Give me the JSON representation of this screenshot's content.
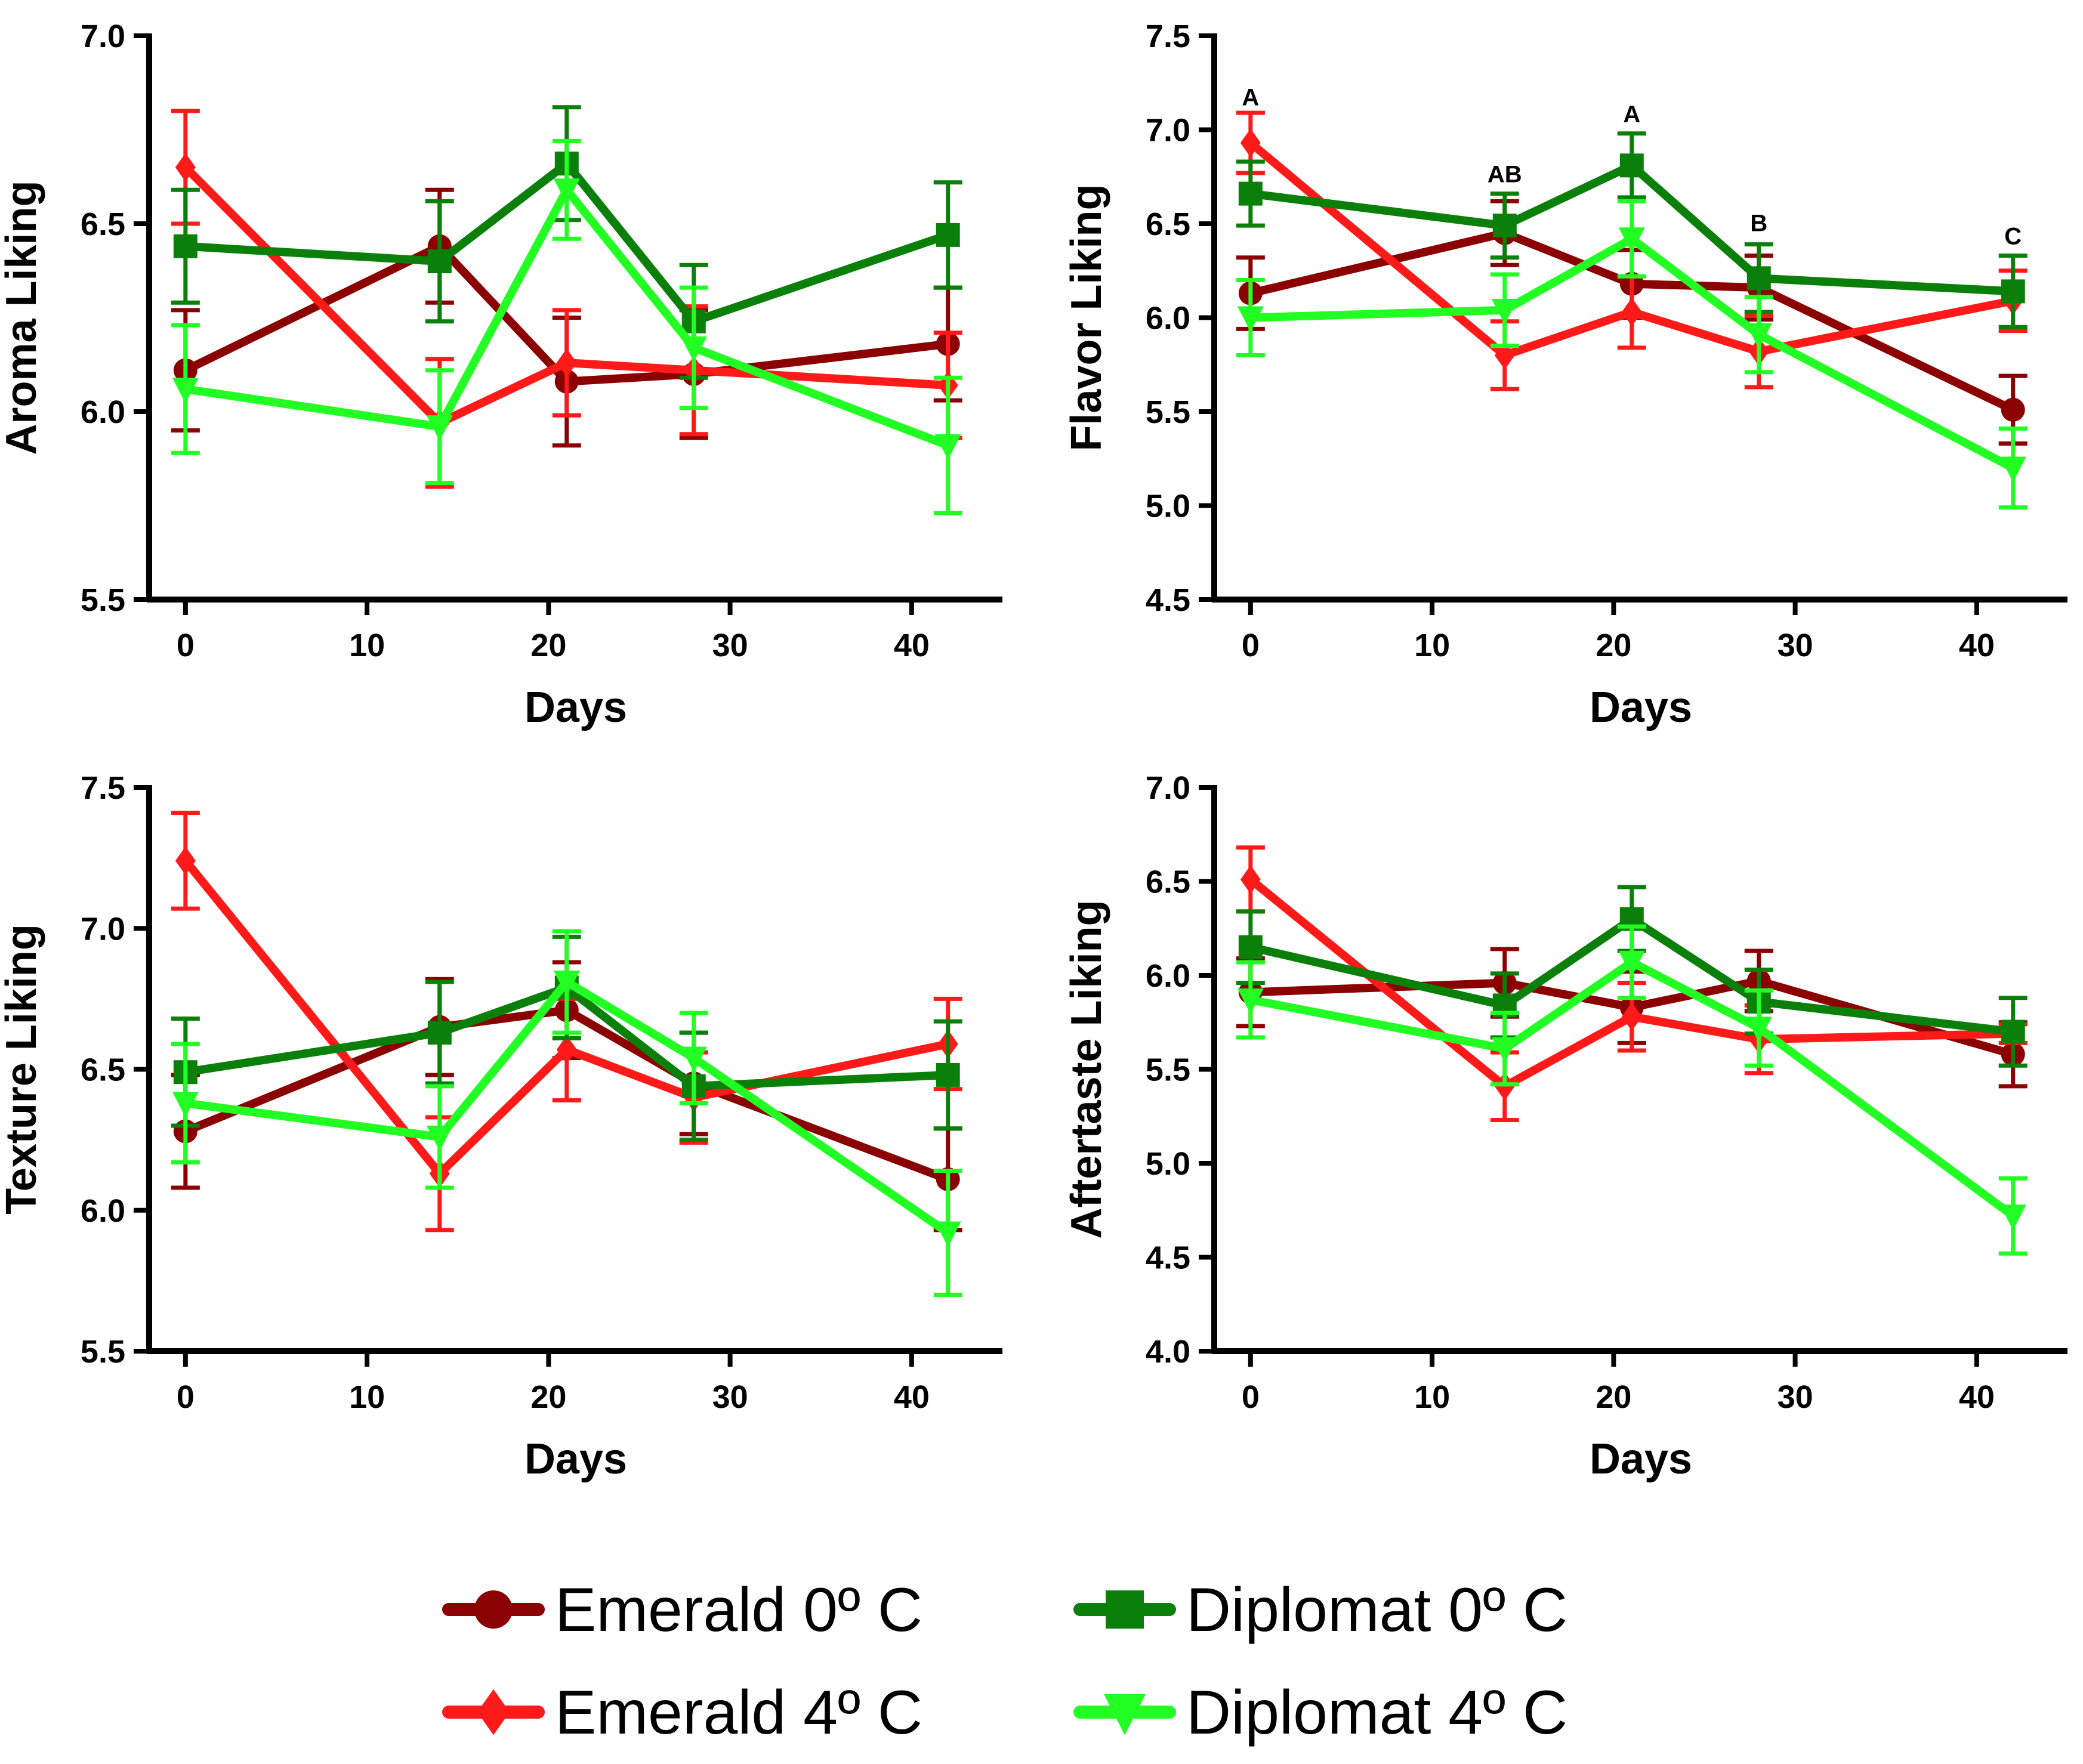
{
  "series_styles": [
    {
      "name": "Emerald 0º C",
      "color": "#8B0000",
      "marker": "circle"
    },
    {
      "name": "Emerald 4º C",
      "color": "#FF1A1A",
      "marker": "diamond"
    },
    {
      "name": "Diplomat 0º C",
      "color": "#0A7F0A",
      "marker": "square"
    },
    {
      "name": "Diplomat 4º C",
      "color": "#22FF22",
      "marker": "triangle-down"
    }
  ],
  "legend": {
    "items": [
      {
        "label": "Emerald 0º C",
        "series": 0
      },
      {
        "label": "Diplomat 0º C",
        "series": 2
      },
      {
        "label": "Emerald 4º C",
        "series": 1
      },
      {
        "label": "Diplomat 4º C",
        "series": 3
      }
    ]
  },
  "chart_data": [
    {
      "id": "aroma",
      "type": "line",
      "xlabel": "Days",
      "ylabel": "Aroma Liking",
      "x": [
        0,
        14,
        21,
        28,
        42
      ],
      "xlim": [
        -2,
        45
      ],
      "xticks": [
        0,
        10,
        20,
        30,
        40
      ],
      "ylim": [
        5.5,
        7.0
      ],
      "yticks": [
        "5.5",
        "6.0",
        "6.5",
        "7.0"
      ],
      "annotations": [],
      "series": [
        {
          "name": "Emerald 0º C",
          "values": [
            6.11,
            6.44,
            6.08,
            6.1,
            6.18
          ],
          "errors": [
            0.16,
            0.15,
            0.17,
            0.17,
            0.15
          ]
        },
        {
          "name": "Emerald 4º C",
          "values": [
            6.65,
            5.97,
            6.13,
            6.11,
            6.07
          ],
          "errors": [
            0.15,
            0.17,
            0.14,
            0.17,
            0.14
          ]
        },
        {
          "name": "Diplomat 0º C",
          "values": [
            6.44,
            6.4,
            6.66,
            6.24,
            6.47
          ],
          "errors": [
            0.15,
            0.16,
            0.15,
            0.15,
            0.14
          ]
        },
        {
          "name": "Diplomat 4º C",
          "values": [
            6.06,
            5.96,
            6.59,
            6.17,
            5.91
          ],
          "errors": [
            0.17,
            0.15,
            0.13,
            0.16,
            0.18
          ]
        }
      ]
    },
    {
      "id": "flavor",
      "type": "line",
      "xlabel": "Days",
      "ylabel": "Flavor Liking",
      "x": [
        0,
        14,
        21,
        28,
        42
      ],
      "xlim": [
        -2,
        45
      ],
      "xticks": [
        0,
        10,
        20,
        30,
        40
      ],
      "ylim": [
        4.5,
        7.5
      ],
      "yticks": [
        "4.5",
        "5.0",
        "5.5",
        "6.0",
        "6.5",
        "7.0",
        "7.5"
      ],
      "annotations": [
        {
          "x": 0,
          "y": 7.13,
          "text": "A"
        },
        {
          "x": 14,
          "y": 6.72,
          "text": "AB"
        },
        {
          "x": 21,
          "y": 7.04,
          "text": "A"
        },
        {
          "x": 28,
          "y": 6.46,
          "text": "B"
        },
        {
          "x": 42,
          "y": 6.39,
          "text": "C"
        }
      ],
      "series": [
        {
          "name": "Emerald 0º C",
          "values": [
            6.13,
            6.45,
            6.18,
            6.16,
            5.51
          ],
          "errors": [
            0.19,
            0.17,
            0.18,
            0.17,
            0.18
          ]
        },
        {
          "name": "Emerald 4º C",
          "values": [
            6.93,
            5.8,
            6.03,
            5.82,
            6.09
          ],
          "errors": [
            0.16,
            0.18,
            0.19,
            0.19,
            0.16
          ]
        },
        {
          "name": "Diplomat 0º C",
          "values": [
            6.66,
            6.49,
            6.81,
            6.21,
            6.14
          ],
          "errors": [
            0.17,
            0.17,
            0.17,
            0.18,
            0.19
          ]
        },
        {
          "name": "Diplomat 4º C",
          "values": [
            6.0,
            6.04,
            6.42,
            5.91,
            5.2
          ],
          "errors": [
            0.2,
            0.19,
            0.2,
            0.2,
            0.21
          ]
        }
      ]
    },
    {
      "id": "texture",
      "type": "line",
      "xlabel": "Days",
      "ylabel": "Texture Liking",
      "x": [
        0,
        14,
        21,
        28,
        42
      ],
      "xlim": [
        -2,
        45
      ],
      "xticks": [
        0,
        10,
        20,
        30,
        40
      ],
      "ylim": [
        5.5,
        7.5
      ],
      "yticks": [
        "5.5",
        "6.0",
        "6.5",
        "7.0",
        "7.5"
      ],
      "annotations": [],
      "series": [
        {
          "name": "Emerald 0º C",
          "values": [
            6.28,
            6.65,
            6.71,
            6.45,
            6.11
          ],
          "errors": [
            0.2,
            0.17,
            0.17,
            0.18,
            0.18
          ]
        },
        {
          "name": "Emerald 4º C",
          "values": [
            7.24,
            6.13,
            6.57,
            6.4,
            6.59
          ],
          "errors": [
            0.17,
            0.2,
            0.18,
            0.16,
            0.16
          ]
        },
        {
          "name": "Diplomat 0º C",
          "values": [
            6.49,
            6.63,
            6.79,
            6.44,
            6.48
          ],
          "errors": [
            0.19,
            0.18,
            0.18,
            0.19,
            0.19
          ]
        },
        {
          "name": "Diplomat 4º C",
          "values": [
            6.38,
            6.26,
            6.81,
            6.54,
            5.92
          ],
          "errors": [
            0.21,
            0.18,
            0.18,
            0.16,
            0.22
          ]
        }
      ]
    },
    {
      "id": "aftertaste",
      "type": "line",
      "xlabel": "Days",
      "ylabel": "Aftertaste Liking",
      "x": [
        0,
        14,
        21,
        28,
        42
      ],
      "xlim": [
        -2,
        45
      ],
      "xticks": [
        0,
        10,
        20,
        30,
        40
      ],
      "ylim": [
        4.0,
        7.0
      ],
      "yticks": [
        "4.0",
        "4.5",
        "5.0",
        "5.5",
        "6.0",
        "6.5",
        "7.0"
      ],
      "annotations": [],
      "series": [
        {
          "name": "Emerald 0º C",
          "values": [
            5.91,
            5.96,
            5.83,
            5.97,
            5.58
          ],
          "errors": [
            0.18,
            0.18,
            0.19,
            0.16,
            0.17
          ]
        },
        {
          "name": "Emerald 4º C",
          "values": [
            6.51,
            5.41,
            5.78,
            5.66,
            5.69
          ],
          "errors": [
            0.17,
            0.18,
            0.18,
            0.18,
            0.05
          ]
        },
        {
          "name": "Diplomat 0º C",
          "values": [
            6.15,
            5.84,
            6.3,
            5.86,
            5.7
          ],
          "errors": [
            0.19,
            0.17,
            0.17,
            0.17,
            0.18
          ]
        },
        {
          "name": "Diplomat 4º C",
          "values": [
            5.87,
            5.61,
            6.07,
            5.72,
            4.72
          ],
          "errors": [
            0.2,
            0.19,
            0.19,
            0.2,
            0.2
          ]
        }
      ]
    }
  ]
}
